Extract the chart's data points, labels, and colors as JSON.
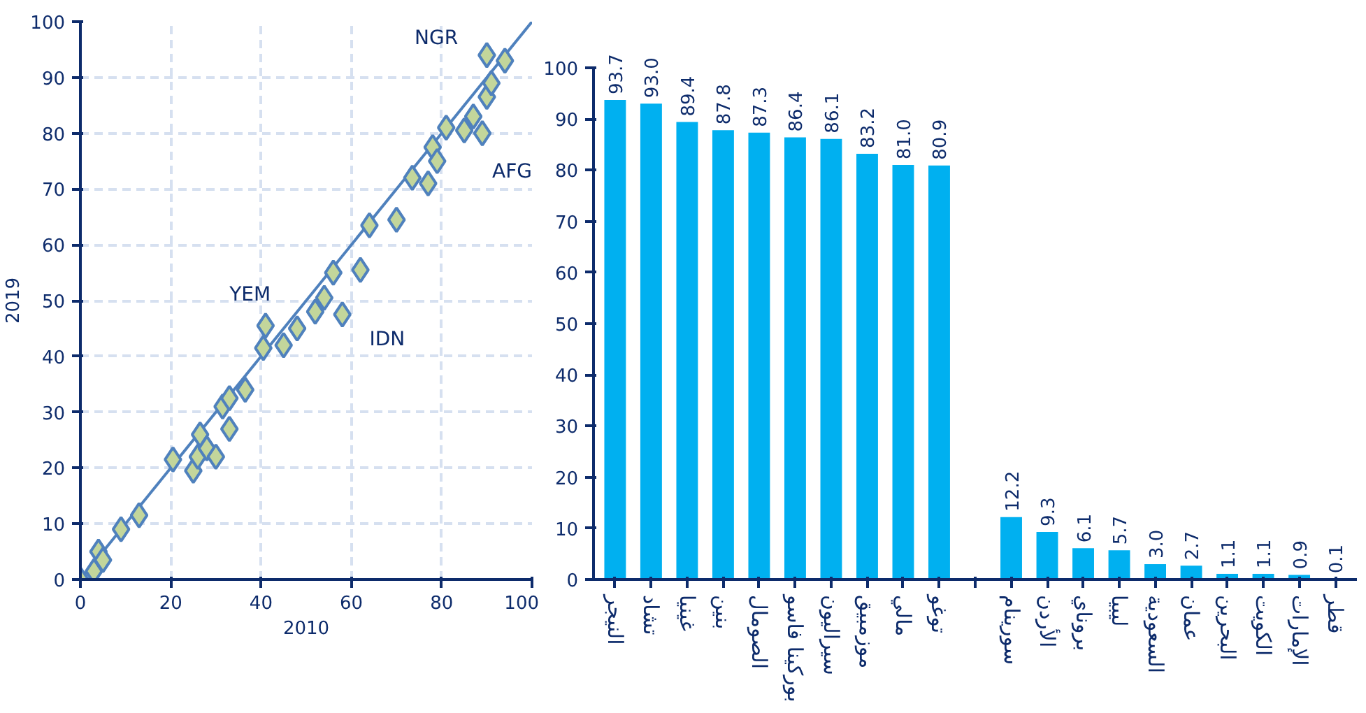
{
  "chart_data": [
    {
      "type": "scatter",
      "xlabel": "2010",
      "ylabel": "2019",
      "xlim": [
        0,
        100
      ],
      "ylim": [
        0,
        100
      ],
      "xticks": [
        0,
        20,
        40,
        60,
        80,
        100
      ],
      "yticks": [
        0,
        10,
        20,
        30,
        40,
        50,
        60,
        70,
        80,
        90,
        100
      ],
      "grid": true,
      "series": [
        {
          "type": "scatter",
          "marker": "diamond",
          "color": "#c3d69b",
          "x": [
            0,
            3,
            4,
            5,
            9,
            13,
            20.5,
            25,
            26,
            26.5,
            28,
            30,
            31.5,
            33,
            33,
            36.5,
            40.5,
            41,
            45,
            48,
            52,
            54,
            56,
            58,
            62,
            64,
            70,
            73.5,
            77,
            78,
            79,
            81,
            85,
            87,
            89,
            90,
            91,
            90,
            94
          ],
          "values": [
            0,
            1.5,
            5,
            3.5,
            9,
            11.5,
            21.5,
            19.5,
            22,
            26,
            23.5,
            22,
            31,
            32.5,
            27,
            34,
            41.5,
            45.5,
            42,
            45,
            48,
            50.5,
            55,
            47.5,
            55.5,
            63.5,
            64.5,
            72,
            71,
            77.5,
            75,
            81,
            80.5,
            83,
            80,
            86.5,
            89,
            94,
            93
          ]
        },
        {
          "type": "line",
          "marker": "none",
          "color": "#4f81bd",
          "x": [
            0,
            100
          ],
          "values": [
            0,
            100
          ]
        }
      ],
      "annotations": [
        "NGR",
        "AFG",
        "YEM",
        "IDN"
      ]
    },
    {
      "type": "bar",
      "categories": [
        "النيجر",
        "تشاد",
        "غينيا",
        "بنين",
        "الصومال",
        "بوركينا فاسو",
        "سيراليون",
        "موزمبيق",
        "مالي",
        "توغو",
        null,
        "سورينام",
        "الأردن",
        "بروناي",
        "ليبيا",
        "السعودية",
        "عمان",
        "البحرين",
        "الكويت",
        "الإمارات",
        "قطر"
      ],
      "color": "#00b0f0",
      "values": [
        93.7,
        93.0,
        89.4,
        87.8,
        87.3,
        86.4,
        86.1,
        83.2,
        81.0,
        80.9,
        null,
        12.2,
        9.3,
        6.1,
        5.7,
        3.0,
        2.7,
        1.1,
        1.1,
        0.9,
        0.1
      ],
      "value_labels": [
        "93.7",
        "93.0",
        "89.4",
        "87.8",
        "87.3",
        "86.4",
        "86.1",
        "83.2",
        "81.0",
        "80.9",
        null,
        "12.2",
        "9.3",
        "6.1",
        "5.7",
        "3.0",
        "2.7",
        "1.1",
        "1.1",
        "0.9",
        "0.1"
      ],
      "ylim": [
        0,
        100
      ],
      "yticks": [
        0,
        10,
        20,
        30,
        40,
        50,
        60,
        70,
        80,
        90,
        100
      ],
      "grid": false
    }
  ]
}
